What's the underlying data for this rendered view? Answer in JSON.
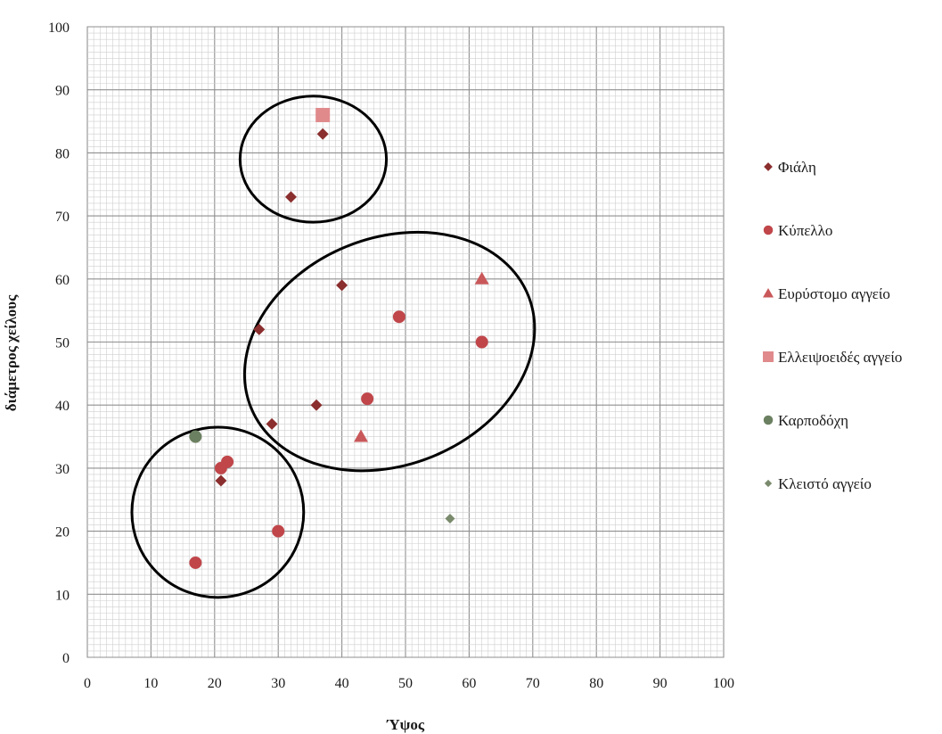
{
  "chart_data": {
    "type": "scatter",
    "title": "",
    "xlabel": "Ύψος",
    "ylabel": "διάμετρος χείλους",
    "xlim": [
      0,
      100
    ],
    "ylim": [
      0,
      100
    ],
    "x_ticks": [
      "0",
      "10",
      "20",
      "30",
      "40",
      "50",
      "60",
      "70",
      "80",
      "90",
      "100"
    ],
    "y_ticks": [
      "0",
      "10",
      "20",
      "30",
      "40",
      "50",
      "60",
      "70",
      "80",
      "90",
      "100"
    ],
    "grid": true,
    "minor_grid": true,
    "legend_position": "right",
    "series": [
      {
        "name": "Φιάλη",
        "marker": "diamond",
        "color": "#8b2e2e",
        "points": [
          [
            37,
            83
          ],
          [
            32,
            73
          ],
          [
            40,
            59
          ],
          [
            27,
            52
          ],
          [
            36,
            40
          ],
          [
            29,
            37
          ],
          [
            21,
            28
          ]
        ]
      },
      {
        "name": "Κύπελλο",
        "marker": "circle",
        "color": "#c0464a",
        "points": [
          [
            49,
            54
          ],
          [
            62,
            50
          ],
          [
            44,
            41
          ],
          [
            21,
            30
          ],
          [
            22,
            31
          ],
          [
            30,
            20
          ],
          [
            17,
            15
          ]
        ]
      },
      {
        "name": "Ευρύστομο αγγείο",
        "marker": "triangle",
        "color": "#c9585a",
        "points": [
          [
            62,
            60
          ],
          [
            43,
            35
          ]
        ]
      },
      {
        "name": "Ελλειψοειδές αγγείο",
        "marker": "square",
        "color": "#e08a8c",
        "points": [
          [
            37,
            86
          ]
        ]
      },
      {
        "name": "Καρποδόχη",
        "marker": "circle",
        "color": "#6b8060",
        "points": [
          [
            17,
            35
          ]
        ]
      },
      {
        "name": "Κλειστό αγγείο",
        "marker": "small-diamond",
        "color": "#7a8a6c",
        "points": [
          [
            57,
            22
          ]
        ]
      }
    ],
    "annotations": [
      {
        "type": "ellipse-group",
        "center": [
          35.5,
          79
        ],
        "radius": [
          11.5,
          10
        ]
      },
      {
        "type": "ellipse-group",
        "center": [
          47.5,
          48.5
        ],
        "radius": [
          23.5,
          18
        ],
        "rotation": -22
      },
      {
        "type": "ellipse-group",
        "center": [
          20.5,
          23
        ],
        "radius": [
          13.5,
          13.5
        ]
      }
    ]
  }
}
